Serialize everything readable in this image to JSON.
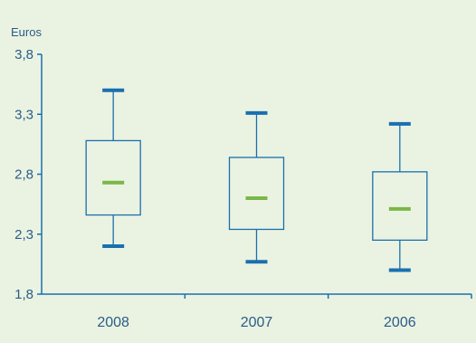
{
  "colors": {
    "background": "#eaf3e1",
    "axis": "#1a6fb0",
    "box": "#1a6fb0",
    "whisker_cap": "#1a6fb0",
    "median": "#7ab648",
    "text": "#2b5c8a"
  },
  "chart_data": {
    "type": "boxplot",
    "title": "",
    "xlabel": "",
    "ylabel": "Euros",
    "ylim": [
      1.8,
      3.8
    ],
    "yticks": [
      {
        "value": 1.8,
        "label": "1,8"
      },
      {
        "value": 2.3,
        "label": "2,3"
      },
      {
        "value": 2.8,
        "label": "2,8"
      },
      {
        "value": 3.3,
        "label": "3,3"
      },
      {
        "value": 3.8,
        "label": "3,8"
      }
    ],
    "grid": false,
    "legend": "none",
    "categories": [
      "2008",
      "2007",
      "2006"
    ],
    "boxes": [
      {
        "category": "2008",
        "min": 2.2,
        "q1": 2.46,
        "median": 2.73,
        "q3": 3.08,
        "max": 3.5
      },
      {
        "category": "2007",
        "min": 2.07,
        "q1": 2.34,
        "median": 2.6,
        "q3": 2.94,
        "max": 3.31
      },
      {
        "category": "2006",
        "min": 2.0,
        "q1": 2.25,
        "median": 2.51,
        "q3": 2.82,
        "max": 3.22
      }
    ]
  }
}
